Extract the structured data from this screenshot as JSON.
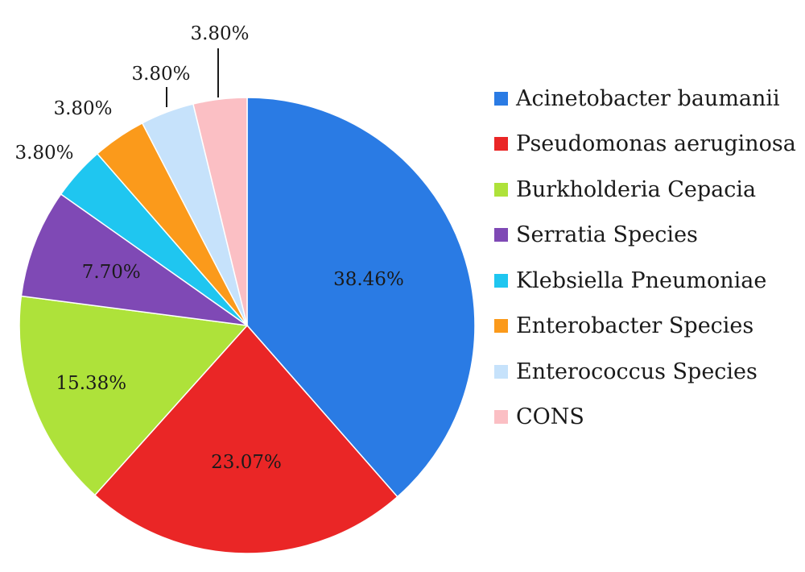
{
  "chart_data": {
    "type": "pie",
    "title": "",
    "start_angle_deg": 0,
    "direction": "clockwise",
    "slices": [
      {
        "label": "Acinetobacter baumanii",
        "value": 38.46,
        "value_label": "38.46%",
        "color": "#2a7be4"
      },
      {
        "label": "Pseudomonas aeruginosa",
        "value": 23.07,
        "value_label": "23.07%",
        "color": "#ea2626"
      },
      {
        "label": "Burkholderia Cepacia",
        "value": 15.38,
        "value_label": "15.38%",
        "color": "#aee23a"
      },
      {
        "label": "Serratia Species",
        "value": 7.7,
        "value_label": "7.70%",
        "color": "#7f49b5"
      },
      {
        "label": "Klebsiella Pneumoniae",
        "value": 3.8,
        "value_label": "3.80%",
        "color": "#1fc6f0"
      },
      {
        "label": "Enterobacter Species",
        "value": 3.8,
        "value_label": "3.80%",
        "color": "#fb9a1b"
      },
      {
        "label": "Enterococcus Species",
        "value": 3.8,
        "value_label": "3.80%",
        "color": "#c6e2fb"
      },
      {
        "label": "CONS",
        "value": 3.8,
        "value_label": "3.80%",
        "color": "#fbbfc4"
      }
    ],
    "legend": {
      "position": "right"
    },
    "label_placement": [
      "inside",
      "inside",
      "inside",
      "inside",
      "outside",
      "outside",
      "outside",
      "outside"
    ]
  }
}
